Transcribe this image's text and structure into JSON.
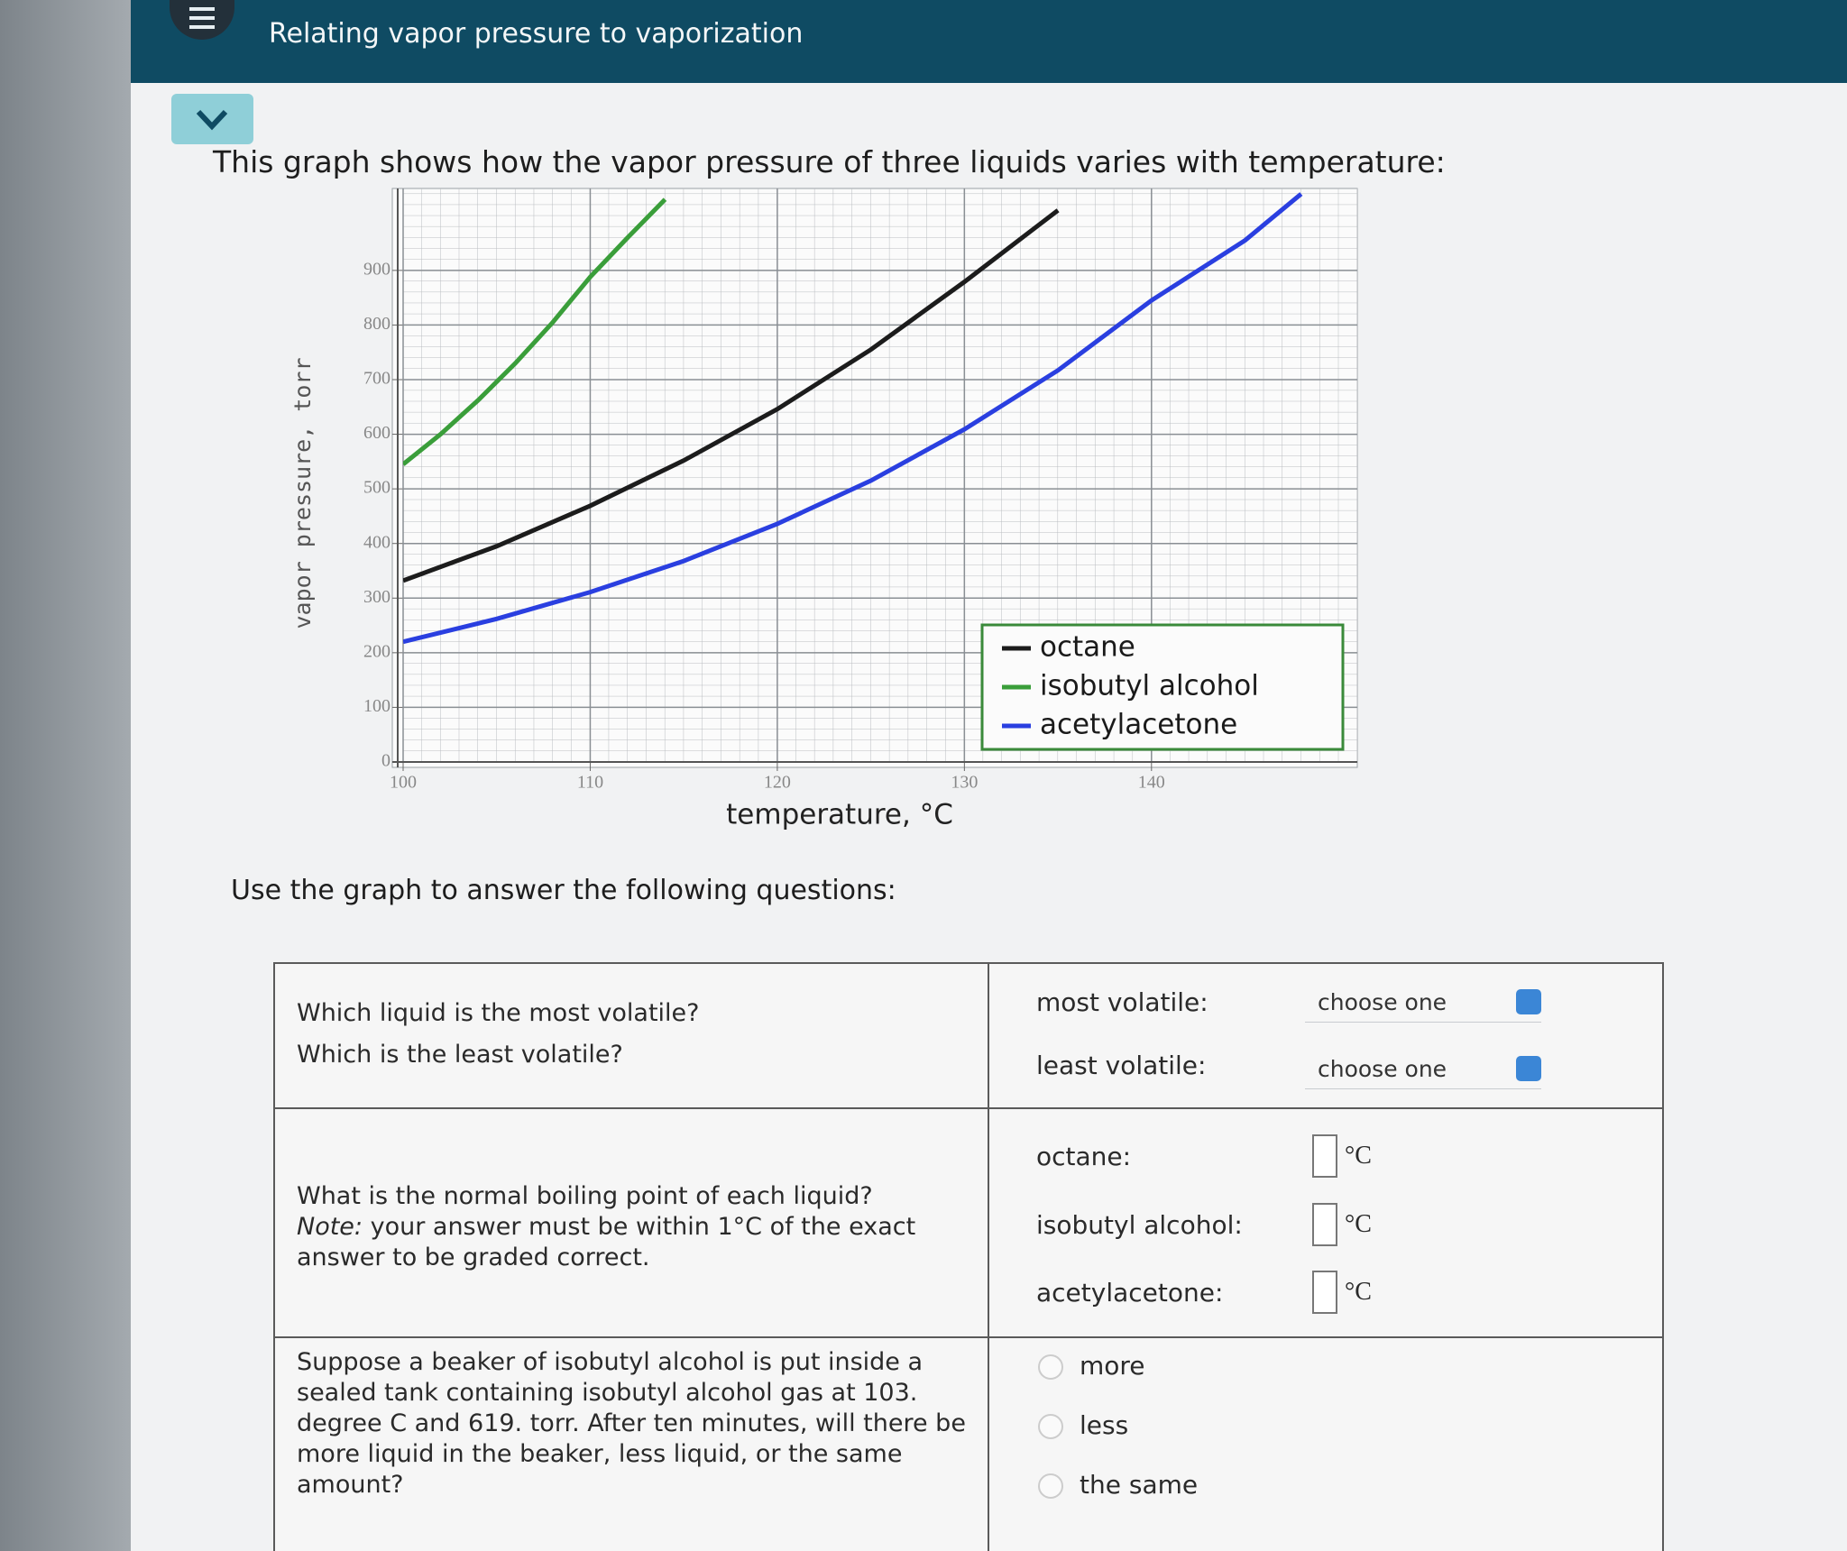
{
  "header": {
    "title": "Relating vapor pressure to vaporization"
  },
  "intro": "This graph shows how the vapor pressure of three liquids varies with temperature:",
  "chart_data": {
    "type": "line",
    "x_label": "temperature, °C",
    "y_label": "vapor pressure, torr",
    "xlim": [
      100,
      151
    ],
    "xticks": [
      100,
      110,
      120,
      130,
      140
    ],
    "ylim": [
      0,
      1050
    ],
    "yticks": [
      0,
      100,
      200,
      300,
      400,
      500,
      600,
      700,
      800,
      900
    ],
    "grid": true,
    "legend": "lower right",
    "series": [
      {
        "name": "octane",
        "color": "#1c1c1c",
        "x": [
          100,
          105,
          110,
          115,
          120,
          125,
          130,
          135
        ],
        "values": [
          332,
          395,
          469,
          552,
          646,
          755,
          879,
          1010
        ]
      },
      {
        "name": "isobutyl alcohol",
        "color": "#3a9e3a",
        "x": [
          100,
          102,
          104,
          106,
          108,
          110,
          112,
          114
        ],
        "values": [
          545,
          600,
          662,
          730,
          805,
          888,
          960,
          1030
        ]
      },
      {
        "name": "acetylacetone",
        "color": "#2a3fe0",
        "x": [
          100,
          105,
          110,
          115,
          120,
          125,
          130,
          135,
          140,
          145,
          148
        ],
        "values": [
          220,
          262,
          311,
          368,
          436,
          515,
          609,
          717,
          845,
          955,
          1040
        ]
      }
    ]
  },
  "prompt": "Use the graph to answer the following questions:",
  "questions": [
    {
      "text": [
        "Which liquid is the most volatile?",
        "Which is the least volatile?"
      ],
      "fields": [
        {
          "label": "most volatile:",
          "placeholder": "choose one"
        },
        {
          "label": "least volatile:",
          "placeholder": "choose one"
        }
      ]
    },
    {
      "text": "What is the normal boiling point of each liquid?",
      "note_label": "Note:",
      "note": "your answer must be within 1°C of the exact answer to be graded correct.",
      "fields": [
        {
          "label": "octane:",
          "unit": "°C"
        },
        {
          "label": "isobutyl alcohol:",
          "unit": "°C"
        },
        {
          "label": "acetylacetone:",
          "unit": "°C"
        }
      ]
    },
    {
      "text": "Suppose a beaker of isobutyl alcohol is put inside a sealed tank containing isobutyl alcohol gas at 103. degree C and 619. torr. After ten minutes, will there be more liquid in the beaker, less liquid, or the same amount?",
      "options": [
        "more",
        "less",
        "the same"
      ]
    }
  ]
}
